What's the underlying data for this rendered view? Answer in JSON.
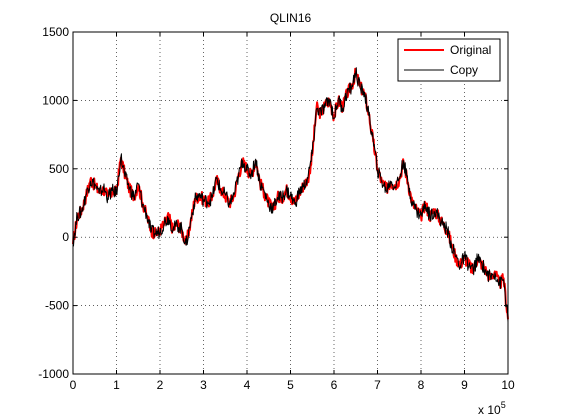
{
  "chart_data": {
    "type": "line",
    "title": "QLIN16",
    "xlabel": "",
    "ylabel": "",
    "x_multiplier": "x 10",
    "x_multiplier_exponent": "5",
    "xlim": [
      0,
      10
    ],
    "ylim": [
      -1000,
      1500
    ],
    "x_ticks": [
      0,
      1,
      2,
      3,
      4,
      5,
      6,
      7,
      8,
      9,
      10
    ],
    "x_tick_labels": [
      "0",
      "1",
      "2",
      "3",
      "4",
      "5",
      "6",
      "7",
      "8",
      "9",
      "10"
    ],
    "y_ticks": [
      -1000,
      -500,
      0,
      500,
      1000,
      1500
    ],
    "y_tick_labels": [
      "-1000",
      "-500",
      "0",
      "500",
      "1000",
      "1500"
    ],
    "grid": true,
    "legend_position": "top-right",
    "series": [
      {
        "name": "Original",
        "color": "#ff0000",
        "points": [
          [
            0.0,
            -50
          ],
          [
            0.1,
            150
          ],
          [
            0.2,
            200
          ],
          [
            0.3,
            300
          ],
          [
            0.4,
            420
          ],
          [
            0.5,
            380
          ],
          [
            0.6,
            330
          ],
          [
            0.7,
            350
          ],
          [
            0.8,
            300
          ],
          [
            0.9,
            330
          ],
          [
            1.0,
            330
          ],
          [
            1.1,
            580
          ],
          [
            1.2,
            450
          ],
          [
            1.3,
            350
          ],
          [
            1.4,
            300
          ],
          [
            1.5,
            380
          ],
          [
            1.6,
            250
          ],
          [
            1.7,
            150
          ],
          [
            1.8,
            50
          ],
          [
            1.9,
            20
          ],
          [
            2.0,
            50
          ],
          [
            2.1,
            100
          ],
          [
            2.2,
            150
          ],
          [
            2.3,
            50
          ],
          [
            2.4,
            100
          ],
          [
            2.5,
            50
          ],
          [
            2.6,
            -50
          ],
          [
            2.7,
            100
          ],
          [
            2.8,
            280
          ],
          [
            2.9,
            300
          ],
          [
            3.0,
            280
          ],
          [
            3.1,
            250
          ],
          [
            3.2,
            300
          ],
          [
            3.3,
            420
          ],
          [
            3.4,
            350
          ],
          [
            3.5,
            300
          ],
          [
            3.6,
            250
          ],
          [
            3.7,
            300
          ],
          [
            3.8,
            450
          ],
          [
            3.9,
            550
          ],
          [
            4.0,
            500
          ],
          [
            4.1,
            450
          ],
          [
            4.2,
            560
          ],
          [
            4.3,
            400
          ],
          [
            4.4,
            320
          ],
          [
            4.5,
            250
          ],
          [
            4.6,
            200
          ],
          [
            4.7,
            300
          ],
          [
            4.8,
            280
          ],
          [
            4.9,
            350
          ],
          [
            5.0,
            300
          ],
          [
            5.1,
            250
          ],
          [
            5.2,
            320
          ],
          [
            5.3,
            380
          ],
          [
            5.4,
            420
          ],
          [
            5.5,
            600
          ],
          [
            5.6,
            950
          ],
          [
            5.7,
            900
          ],
          [
            5.8,
            970
          ],
          [
            5.9,
            1000
          ],
          [
            6.0,
            880
          ],
          [
            6.1,
            1000
          ],
          [
            6.2,
            950
          ],
          [
            6.3,
            1050
          ],
          [
            6.4,
            1100
          ],
          [
            6.5,
            1200
          ],
          [
            6.6,
            1100
          ],
          [
            6.7,
            1050
          ],
          [
            6.8,
            900
          ],
          [
            6.9,
            700
          ],
          [
            7.0,
            500
          ],
          [
            7.1,
            400
          ],
          [
            7.2,
            350
          ],
          [
            7.3,
            400
          ],
          [
            7.4,
            380
          ],
          [
            7.5,
            420
          ],
          [
            7.6,
            550
          ],
          [
            7.7,
            400
          ],
          [
            7.8,
            250
          ],
          [
            7.9,
            200
          ],
          [
            8.0,
            150
          ],
          [
            8.1,
            250
          ],
          [
            8.2,
            150
          ],
          [
            8.3,
            200
          ],
          [
            8.4,
            150
          ],
          [
            8.5,
            100
          ],
          [
            8.6,
            50
          ],
          [
            8.7,
            -50
          ],
          [
            8.8,
            -150
          ],
          [
            8.9,
            -200
          ],
          [
            9.0,
            -150
          ],
          [
            9.1,
            -200
          ],
          [
            9.2,
            -250
          ],
          [
            9.3,
            -150
          ],
          [
            9.4,
            -200
          ],
          [
            9.5,
            -250
          ],
          [
            9.6,
            -300
          ],
          [
            9.7,
            -250
          ],
          [
            9.8,
            -350
          ],
          [
            9.9,
            -300
          ],
          [
            10.0,
            -600
          ]
        ]
      },
      {
        "name": "Copy",
        "color": "#000000",
        "points": [
          [
            0.0,
            -40
          ],
          [
            0.1,
            160
          ],
          [
            0.2,
            190
          ],
          [
            0.3,
            310
          ],
          [
            0.4,
            410
          ],
          [
            0.5,
            390
          ],
          [
            0.6,
            320
          ],
          [
            0.7,
            360
          ],
          [
            0.8,
            290
          ],
          [
            0.9,
            340
          ],
          [
            1.0,
            320
          ],
          [
            1.1,
            590
          ],
          [
            1.2,
            440
          ],
          [
            1.3,
            360
          ],
          [
            1.4,
            290
          ],
          [
            1.5,
            390
          ],
          [
            1.6,
            240
          ],
          [
            1.7,
            160
          ],
          [
            1.8,
            40
          ],
          [
            1.9,
            30
          ],
          [
            2.0,
            40
          ],
          [
            2.1,
            110
          ],
          [
            2.2,
            140
          ],
          [
            2.3,
            60
          ],
          [
            2.4,
            90
          ],
          [
            2.5,
            60
          ],
          [
            2.6,
            -60
          ],
          [
            2.7,
            110
          ],
          [
            2.8,
            270
          ],
          [
            2.9,
            310
          ],
          [
            3.0,
            270
          ],
          [
            3.1,
            260
          ],
          [
            3.2,
            290
          ],
          [
            3.3,
            430
          ],
          [
            3.4,
            340
          ],
          [
            3.5,
            310
          ],
          [
            3.6,
            240
          ],
          [
            3.7,
            310
          ],
          [
            3.8,
            440
          ],
          [
            3.9,
            560
          ],
          [
            4.0,
            490
          ],
          [
            4.1,
            460
          ],
          [
            4.2,
            570
          ],
          [
            4.3,
            390
          ],
          [
            4.4,
            330
          ],
          [
            4.5,
            240
          ],
          [
            4.6,
            210
          ],
          [
            4.7,
            290
          ],
          [
            4.8,
            290
          ],
          [
            4.9,
            340
          ],
          [
            5.0,
            310
          ],
          [
            5.1,
            240
          ],
          [
            5.2,
            330
          ],
          [
            5.3,
            370
          ],
          [
            5.4,
            430
          ],
          [
            5.5,
            610
          ],
          [
            5.6,
            940
          ],
          [
            5.7,
            910
          ],
          [
            5.8,
            960
          ],
          [
            5.9,
            1010
          ],
          [
            6.0,
            870
          ],
          [
            6.1,
            1010
          ],
          [
            6.2,
            940
          ],
          [
            6.3,
            1060
          ],
          [
            6.4,
            1090
          ],
          [
            6.5,
            1210
          ],
          [
            6.6,
            1090
          ],
          [
            6.7,
            1060
          ],
          [
            6.8,
            890
          ],
          [
            6.9,
            710
          ],
          [
            7.0,
            490
          ],
          [
            7.1,
            410
          ],
          [
            7.2,
            340
          ],
          [
            7.3,
            410
          ],
          [
            7.4,
            370
          ],
          [
            7.5,
            430
          ],
          [
            7.6,
            560
          ],
          [
            7.7,
            390
          ],
          [
            7.8,
            260
          ],
          [
            7.9,
            190
          ],
          [
            8.0,
            160
          ],
          [
            8.1,
            240
          ],
          [
            8.2,
            160
          ],
          [
            8.3,
            190
          ],
          [
            8.4,
            160
          ],
          [
            8.5,
            90
          ],
          [
            8.6,
            60
          ],
          [
            8.7,
            -60
          ],
          [
            8.8,
            -140
          ],
          [
            8.9,
            -210
          ],
          [
            9.0,
            -140
          ],
          [
            9.1,
            -210
          ],
          [
            9.2,
            -240
          ],
          [
            9.3,
            -160
          ],
          [
            9.4,
            -190
          ],
          [
            9.5,
            -260
          ],
          [
            9.6,
            -290
          ],
          [
            9.7,
            -260
          ],
          [
            9.8,
            -340
          ],
          [
            9.9,
            -310
          ],
          [
            10.0,
            -620
          ]
        ]
      }
    ]
  }
}
